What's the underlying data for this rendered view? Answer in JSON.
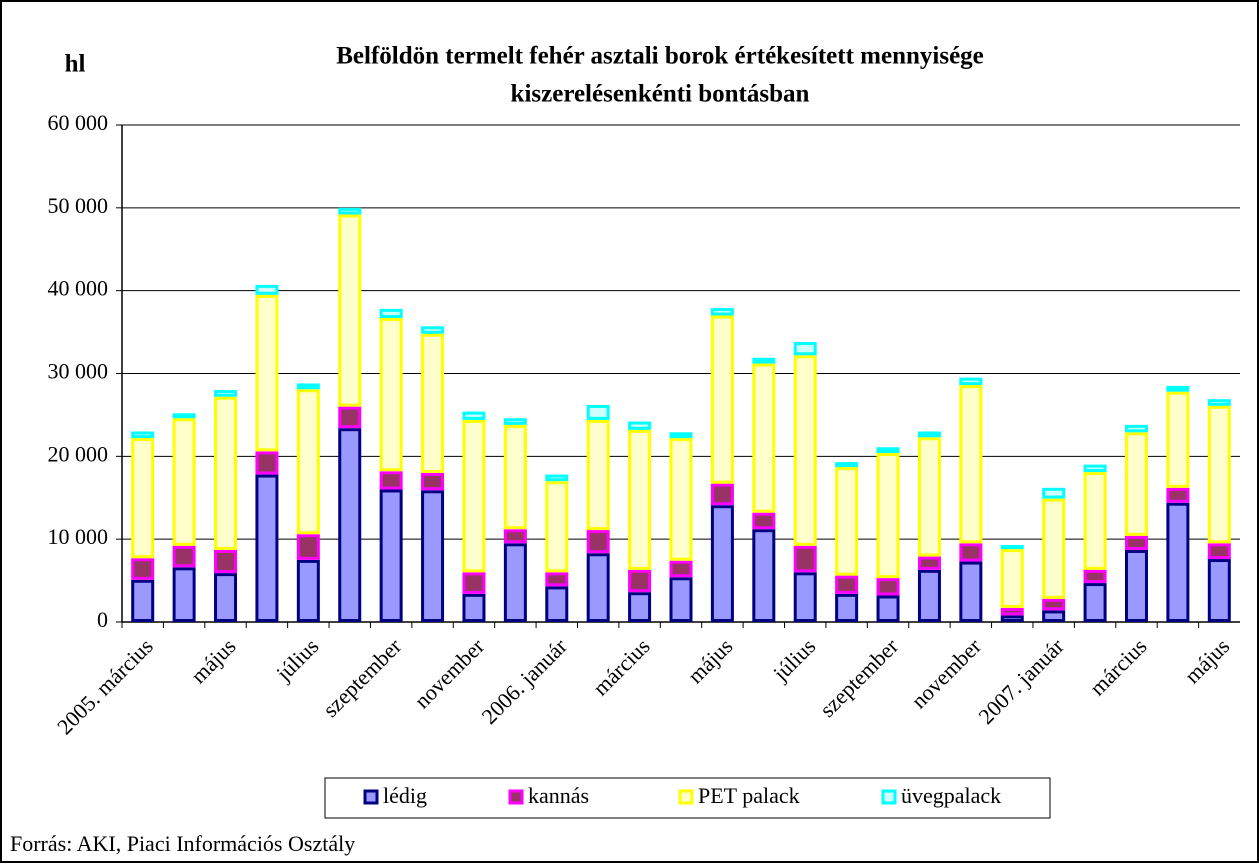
{
  "chart_data": {
    "type": "stacked_bar",
    "title": [
      "Belföldön termelt fehér asztali borok értékesített mennyisége",
      "kiszerelésenkénti bontásban"
    ],
    "ylabel": "hl",
    "source": "Forrás: AKI, Piaci Információs Osztály",
    "categories": [
      "2005. március",
      null,
      "május",
      null,
      "július",
      null,
      "szeptember",
      null,
      "november",
      null,
      "2006. január",
      null,
      "március",
      null,
      "május",
      null,
      "július",
      null,
      "szeptember",
      null,
      "november",
      null,
      "2007. január",
      null,
      "március",
      null,
      "május"
    ],
    "series": [
      {
        "name": "lédig",
        "color": "#000080",
        "fill": "#9999ff",
        "values": [
          5100,
          6600,
          5900,
          17800,
          7500,
          23400,
          16000,
          15900,
          3400,
          9500,
          4300,
          8300,
          3600,
          5400,
          14100,
          11200,
          6000,
          3400,
          3200,
          6300,
          7300,
          800,
          1400,
          4700,
          8700,
          14400,
          7600
        ]
      },
      {
        "name": "kannás",
        "color": "#ff00ff",
        "fill": "#993366",
        "values": [
          2600,
          2600,
          2800,
          2800,
          3100,
          2600,
          2200,
          2100,
          2600,
          1700,
          1700,
          2800,
          2700,
          2000,
          2600,
          2000,
          3200,
          2200,
          2100,
          1600,
          2200,
          900,
          1400,
          1600,
          1700,
          1800,
          1900
        ]
      },
      {
        "name": "PET palack",
        "color": "#ffff00",
        "fill": "#ffffcc",
        "values": [
          14500,
          15400,
          18500,
          18900,
          17500,
          23200,
          18500,
          16800,
          18400,
          12600,
          11000,
          13300,
          16900,
          14800,
          20300,
          18000,
          23000,
          13100,
          15100,
          14400,
          19100,
          7100,
          12100,
          11800,
          12500,
          11600,
          16600
        ]
      },
      {
        "name": "üvegpalack",
        "color": "#00ffff",
        "fill": "#ccffff",
        "values": [
          800,
          600,
          800,
          1200,
          700,
          800,
          1100,
          900,
          1000,
          800,
          800,
          1800,
          1000,
          700,
          900,
          700,
          1600,
          600,
          700,
          700,
          900,
          500,
          1300,
          900,
          900,
          700,
          800
        ]
      }
    ],
    "ylim": [
      0,
      60000
    ],
    "yticks": [
      0,
      {
        "value": 10000,
        "label": "10 000"
      },
      {
        "value": 20000,
        "label": "20 000"
      },
      {
        "value": 30000,
        "label": "30 000"
      },
      {
        "value": 40000,
        "label": "40 000"
      },
      {
        "value": 50000,
        "label": "50 000"
      },
      {
        "value": 60000,
        "label": "60 000"
      }
    ],
    "grid": true
  }
}
